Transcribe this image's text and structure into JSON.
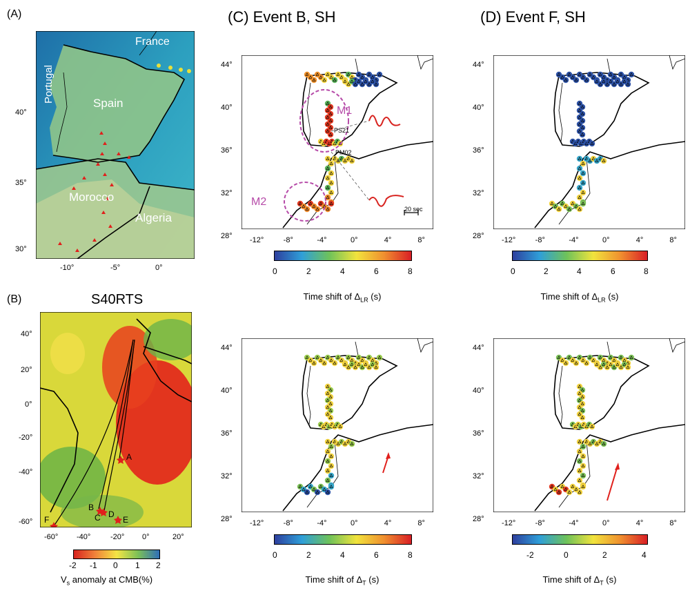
{
  "panels": {
    "A": {
      "label": "(A)",
      "countries": [
        "France",
        "Portugal",
        "Spain",
        "Morocco",
        "Algeria"
      ],
      "y_ticks": [
        "40°",
        "35°",
        "30°"
      ],
      "x_ticks": [
        "-10°",
        "-5°",
        "0°"
      ]
    },
    "B": {
      "label": "(B)",
      "title": "S40RTS",
      "y_ticks": [
        "40°",
        "20°",
        "0°",
        "-20°",
        "-40°",
        "-60°"
      ],
      "x_ticks": [
        "-60°",
        "-40°",
        "-20°",
        "0°",
        "20°"
      ],
      "events": [
        "A",
        "B",
        "C",
        "D",
        "E",
        "F"
      ],
      "colorbar_ticks": [
        "-2",
        "-1",
        "0",
        "1",
        "2"
      ],
      "colorbar_caption_main": "V",
      "colorbar_caption_sub": "s",
      "colorbar_caption_rest": " anomaly at CMB(%)"
    },
    "C": {
      "title": "(C) Event B, SH",
      "annotations": {
        "m1": "M1",
        "m2": "M2",
        "ps21": "PS21",
        "pm02": "PM02",
        "scale": "20 sec"
      }
    },
    "D": {
      "title": "(D) Event F, SH"
    },
    "map_y_ticks": [
      "44°",
      "40°",
      "36°",
      "32°",
      "28°"
    ],
    "map_x_ticks": [
      "-12°",
      "-8°",
      "-4°",
      "0°",
      "4°",
      "8°"
    ],
    "colorbar_0_8_ticks": [
      "0",
      "2",
      "4",
      "6",
      "8"
    ],
    "colorbar_m2_4_ticks": [
      "-2",
      "0",
      "2",
      "4"
    ],
    "caption_lr_main": "Time shift of Δ",
    "caption_lr_sub": "LR",
    "caption_t_main": "Time shift of Δ",
    "caption_t_sub": "T",
    "caption_unit": " (s)"
  }
}
